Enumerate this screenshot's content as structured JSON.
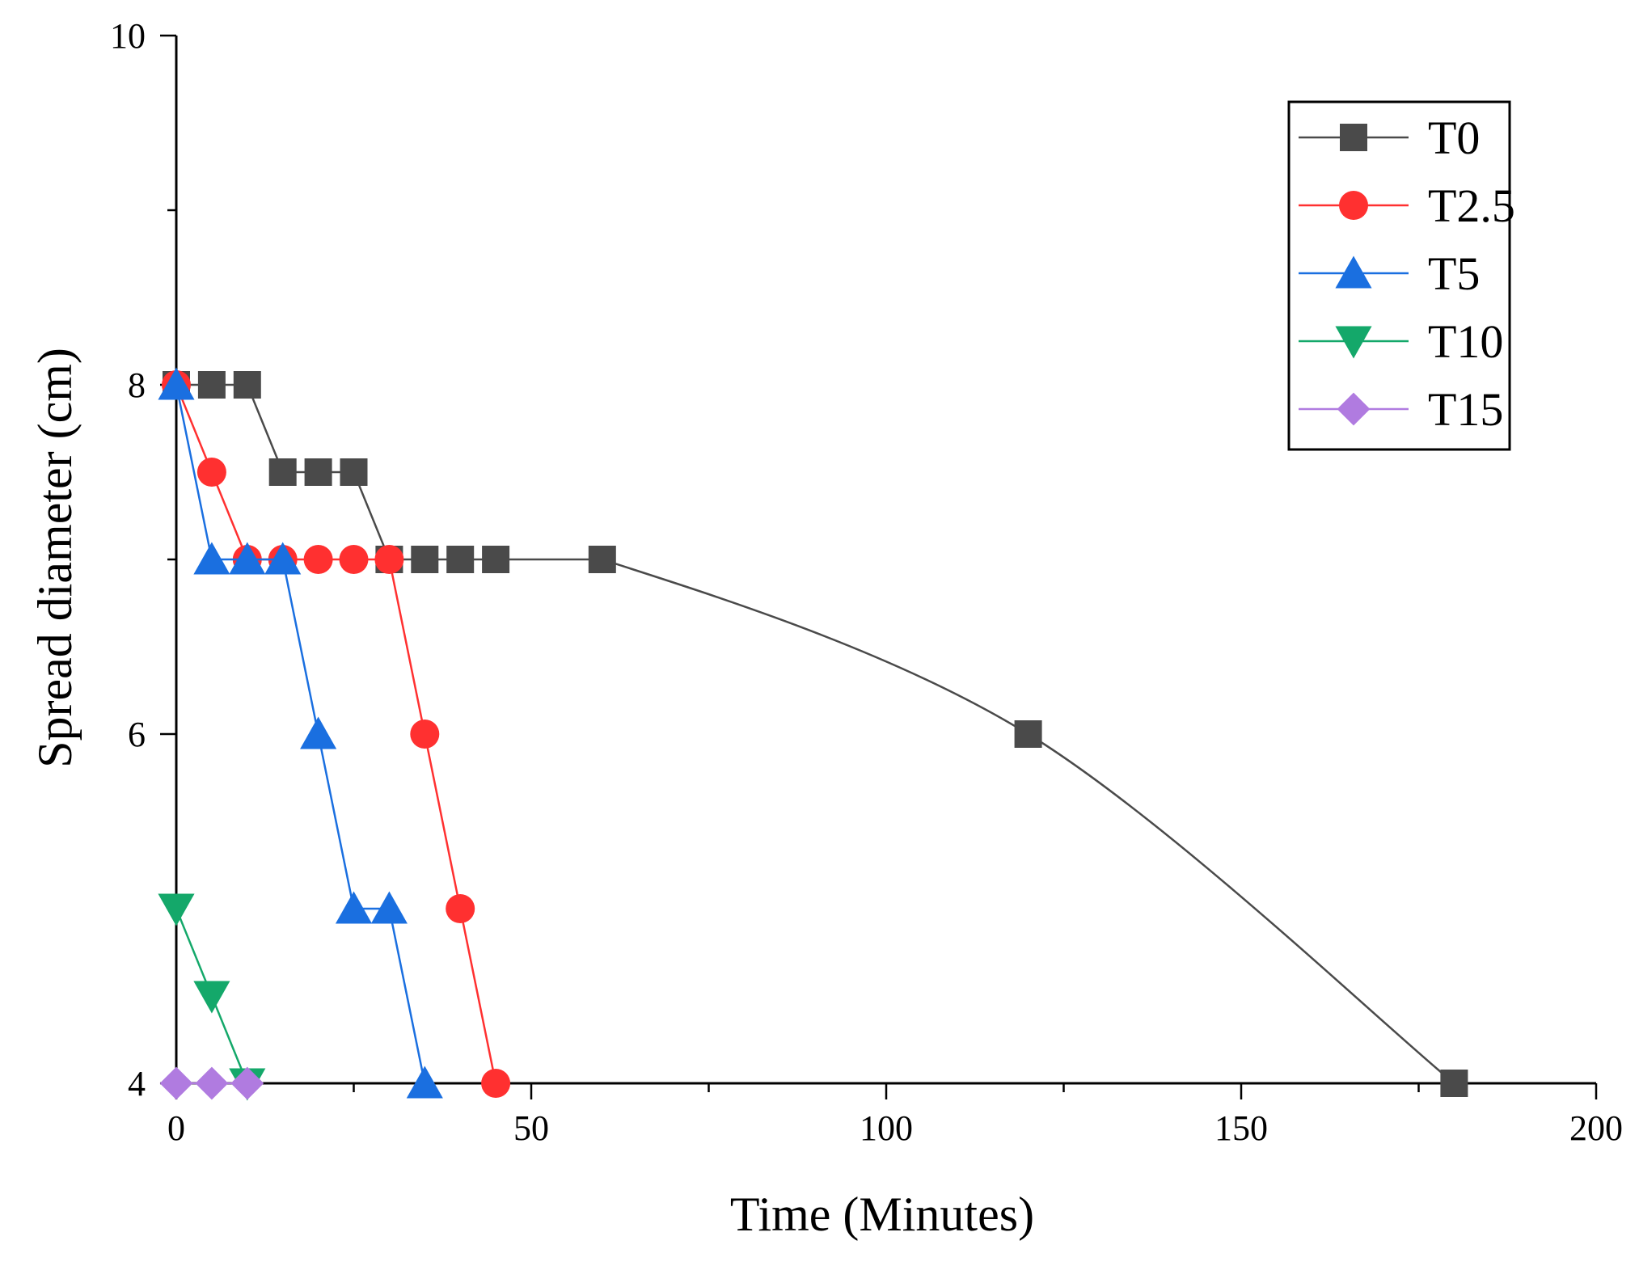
{
  "chart_data": {
    "type": "line",
    "title": "",
    "xlabel": "Time (Minutes)",
    "ylabel": "Spread diameter (cm)",
    "xlim": [
      0,
      200
    ],
    "ylim": [
      4,
      10
    ],
    "x_major_ticks": [
      0,
      50,
      100,
      150,
      200
    ],
    "y_major_ticks": [
      4,
      6,
      8,
      10
    ],
    "x_tick_labels": [
      "0",
      "50",
      "100",
      "150",
      "200"
    ],
    "y_tick_labels": [
      "4",
      "6",
      "8",
      "10"
    ],
    "grid": false,
    "legend_position": "top-right",
    "series": [
      {
        "name": "T0",
        "color": "#4a4a4a",
        "marker": "square",
        "smooth_tail": true,
        "x": [
          0,
          5,
          10,
          15,
          20,
          25,
          30,
          35,
          40,
          45,
          60,
          120,
          180
        ],
        "y": [
          8,
          8,
          8,
          7.5,
          7.5,
          7.5,
          7,
          7,
          7,
          7,
          7,
          6,
          4
        ]
      },
      {
        "name": "T2.5",
        "color": "#ff3030",
        "marker": "circle",
        "x": [
          0,
          5,
          10,
          15,
          20,
          25,
          30,
          35,
          40,
          45
        ],
        "y": [
          8,
          7.5,
          7,
          7,
          7,
          7,
          7,
          6,
          5,
          4
        ]
      },
      {
        "name": "T5",
        "color": "#1a6fe0",
        "marker": "triangle-up",
        "x": [
          0,
          5,
          10,
          15,
          20,
          25,
          30,
          35
        ],
        "y": [
          8,
          7,
          7,
          7,
          6,
          5,
          5,
          4
        ]
      },
      {
        "name": "T10",
        "color": "#14a86a",
        "marker": "triangle-down",
        "x": [
          0,
          5,
          10
        ],
        "y": [
          5,
          4.5,
          4
        ]
      },
      {
        "name": "T15",
        "color": "#b07be0",
        "marker": "diamond",
        "x": [
          0,
          5,
          10
        ],
        "y": [
          4,
          4,
          4
        ]
      }
    ]
  }
}
